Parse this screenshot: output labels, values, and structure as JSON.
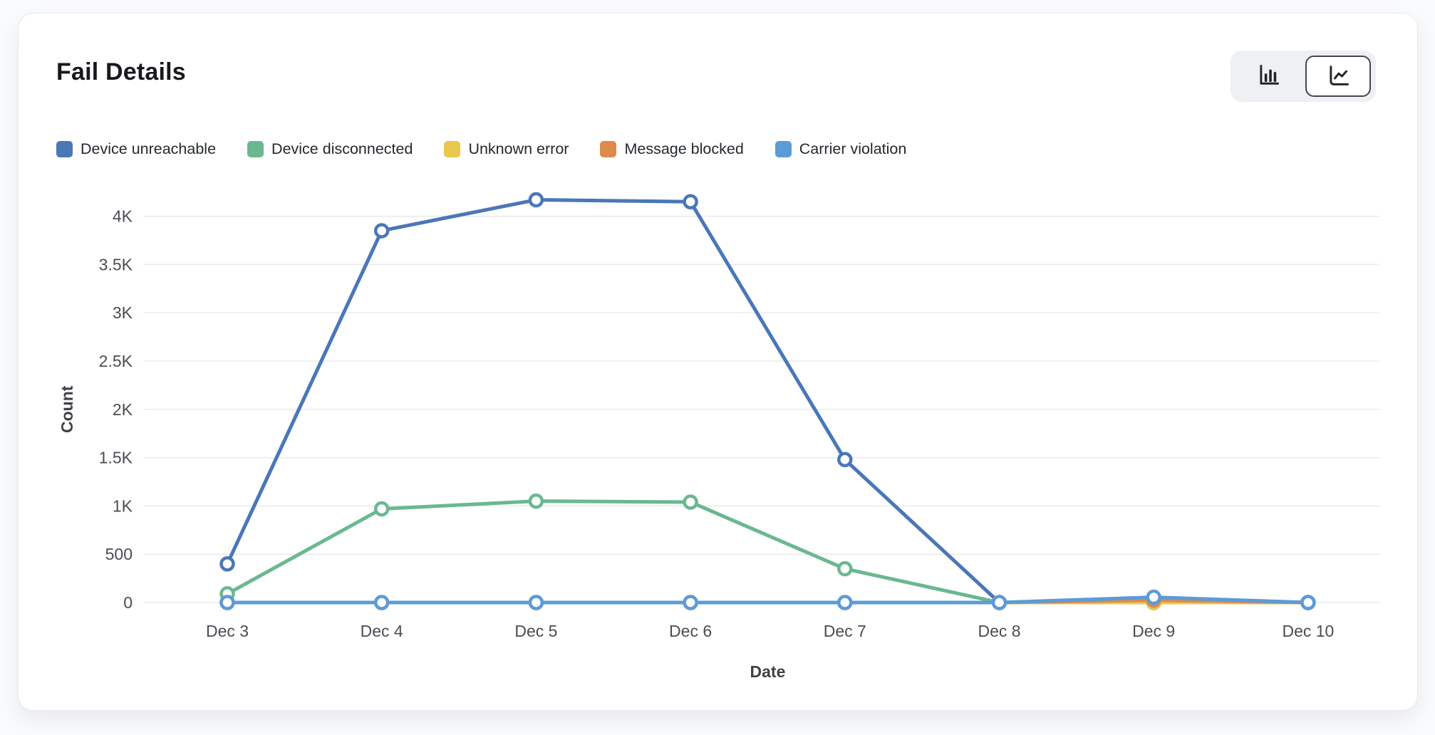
{
  "card": {
    "title": "Fail Details"
  },
  "toolbar": {
    "view_toggle": {
      "options": [
        {
          "id": "bar",
          "icon": "bar-chart-icon",
          "selected": false
        },
        {
          "id": "line",
          "icon": "line-chart-icon",
          "selected": true
        }
      ]
    }
  },
  "chart_data": {
    "type": "line",
    "title": "Fail Details",
    "xlabel": "Date",
    "ylabel": "Count",
    "x": [
      "Dec 3",
      "Dec 4",
      "Dec 5",
      "Dec 6",
      "Dec 7",
      "Dec 8",
      "Dec 9",
      "Dec 10"
    ],
    "yticks": [
      0,
      500,
      1000,
      1500,
      2000,
      2500,
      3000,
      3500,
      4000
    ],
    "ytick_labels": [
      "0",
      "500",
      "1K",
      "1.5K",
      "2K",
      "2.5K",
      "3K",
      "3.5K",
      "4K"
    ],
    "ylim": [
      0,
      4300
    ],
    "grid": "horizontal",
    "legend_position": "top",
    "markers": true,
    "series": [
      {
        "name": "Device unreachable",
        "color": "#4a77b8",
        "values": [
          400,
          3850,
          4170,
          4150,
          1480,
          0,
          0,
          0
        ]
      },
      {
        "name": "Device disconnected",
        "color": "#6ab890",
        "values": [
          90,
          970,
          1050,
          1040,
          350,
          0,
          30,
          0
        ]
      },
      {
        "name": "Unknown error",
        "color": "#e8c84d",
        "values": [
          0,
          0,
          0,
          0,
          0,
          0,
          0,
          0
        ]
      },
      {
        "name": "Message blocked",
        "color": "#dd8a4c",
        "values": [
          0,
          0,
          0,
          0,
          0,
          0,
          25,
          0
        ]
      },
      {
        "name": "Carrier violation",
        "color": "#5b9bd8",
        "values": [
          0,
          0,
          0,
          0,
          0,
          0,
          55,
          0
        ]
      }
    ],
    "style": {
      "gridline_color": "#e9eaec",
      "tick_label_color": "#4a4d52",
      "axis_title_color": "#3f4247",
      "marker_fill": "#ffffff"
    }
  }
}
